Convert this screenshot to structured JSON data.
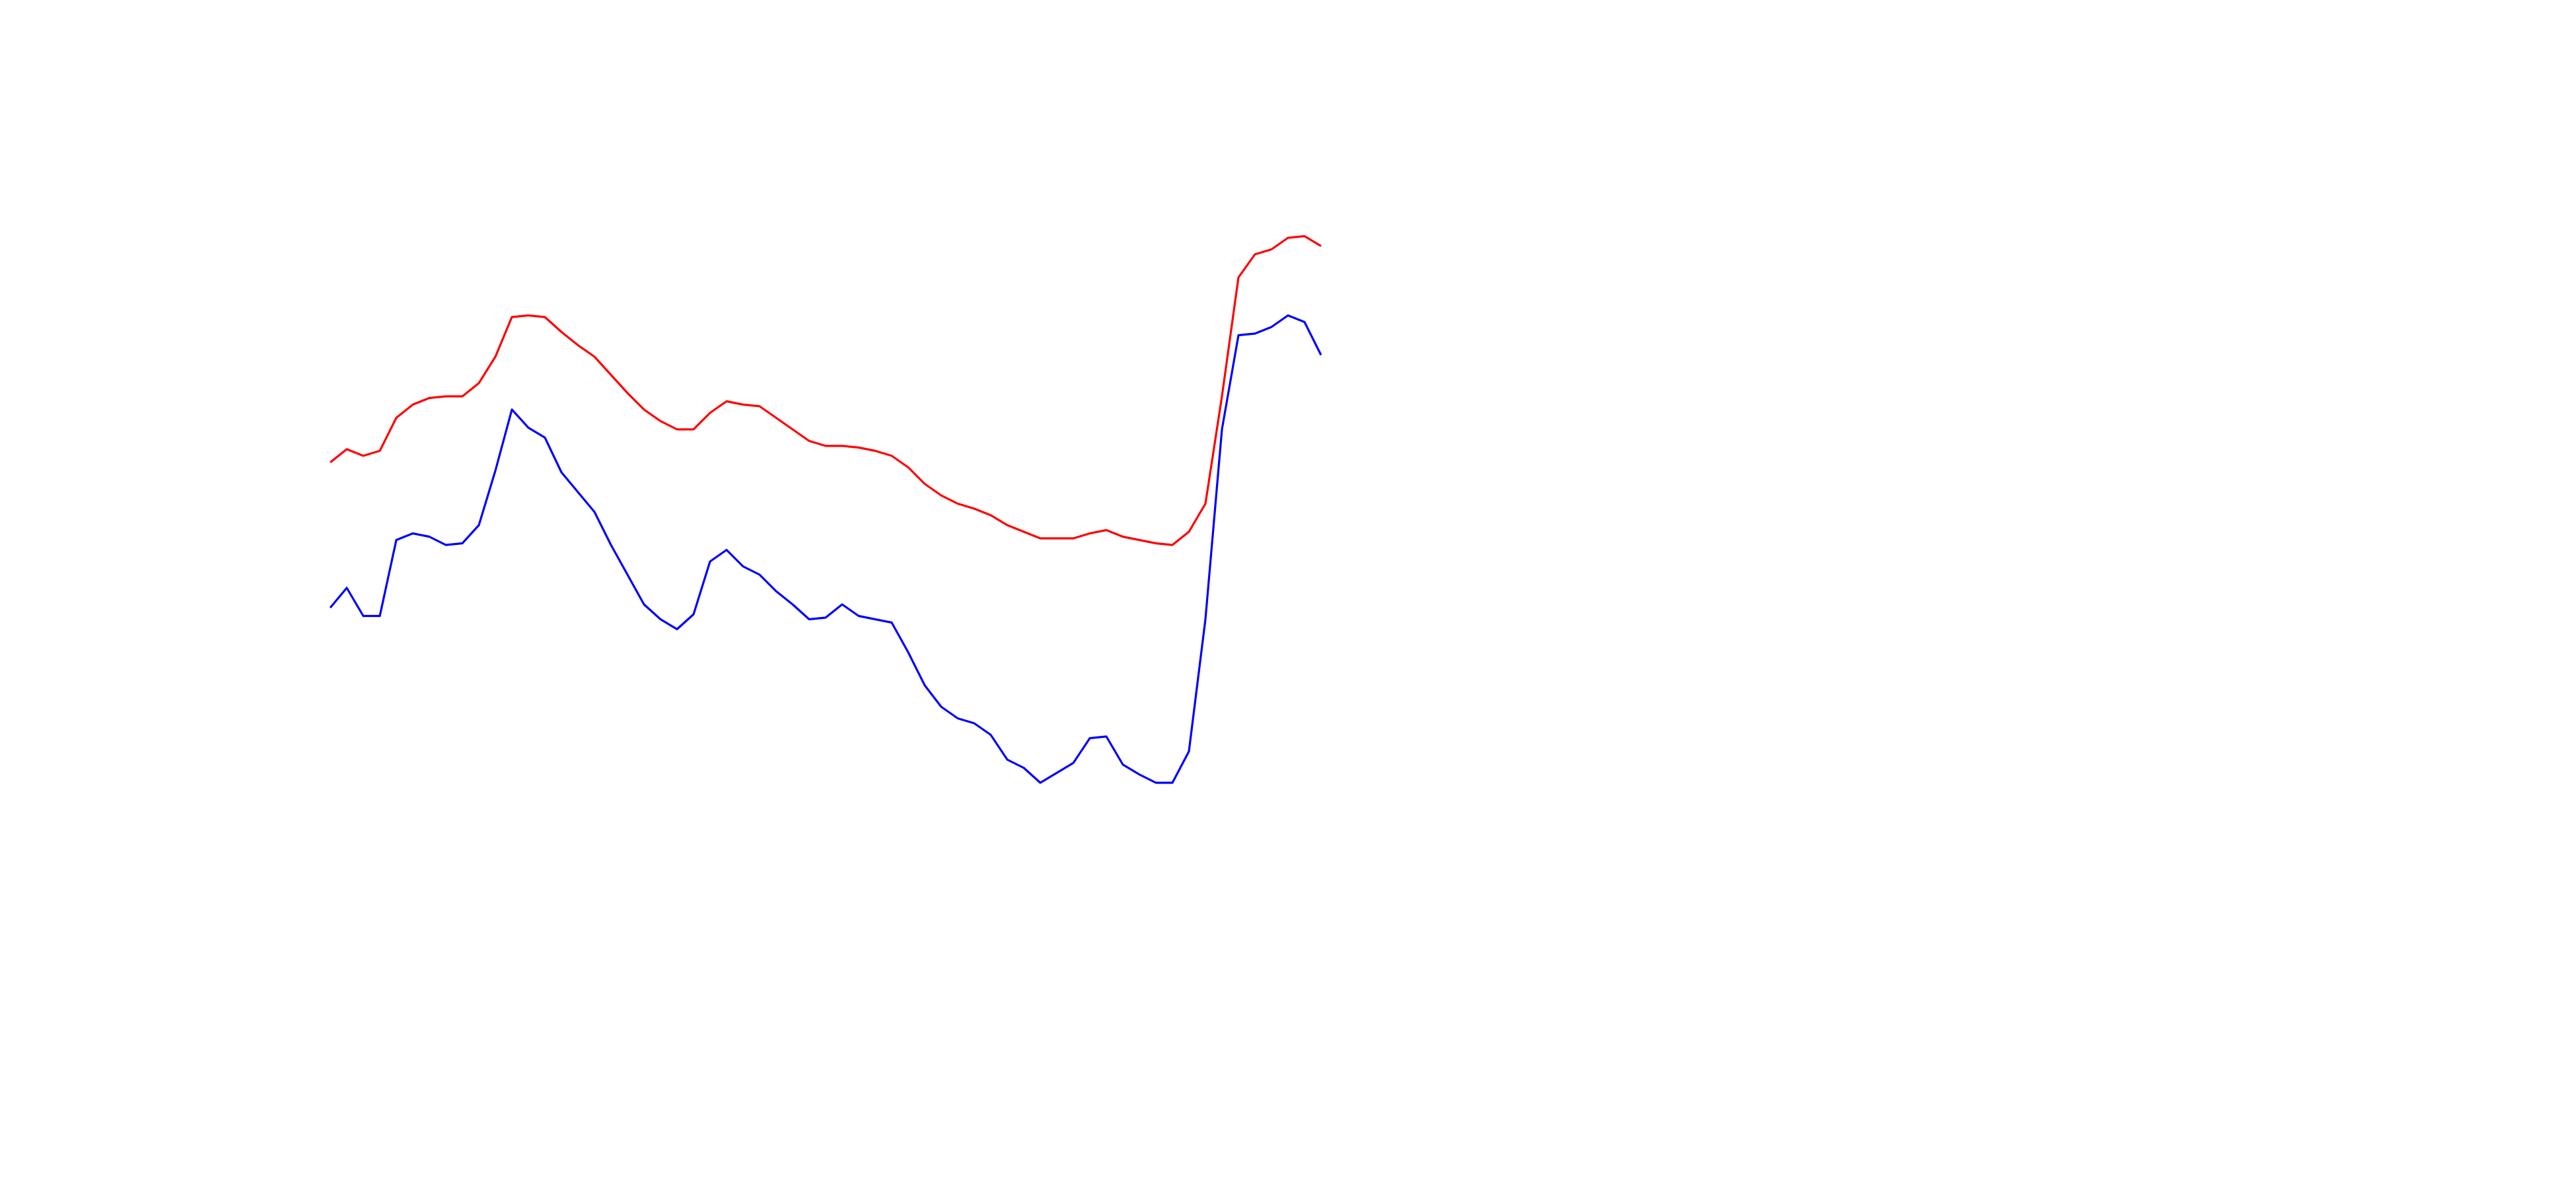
{
  "chart_data": {
    "type": "line",
    "x": [
      0,
      10,
      20,
      30,
      40,
      50,
      60,
      70,
      80,
      90,
      100,
      110,
      120,
      130,
      140,
      150,
      160,
      170,
      180,
      190,
      200,
      210,
      220,
      230,
      240,
      250,
      260,
      270,
      280,
      290,
      300,
      310,
      320,
      330,
      340,
      350,
      360,
      370,
      380,
      390,
      400,
      410,
      420,
      430,
      440,
      450,
      460,
      470,
      480,
      490,
      500,
      510,
      520,
      530,
      540,
      550,
      560,
      570,
      580,
      590,
      600
    ],
    "xlim": [
      -3,
      602
    ],
    "ylim": [
      0,
      400
    ],
    "series": [
      {
        "color": "#ff0000",
        "values": [
          220,
          228,
          224,
          227,
          247,
          255,
          259,
          260,
          260,
          268,
          284,
          308,
          309,
          308,
          299,
          291,
          284,
          273,
          262,
          252,
          245,
          240,
          240,
          250,
          257,
          255,
          254,
          247,
          240,
          233,
          230,
          230,
          229,
          227,
          224,
          217,
          207,
          200,
          195,
          192,
          188,
          182,
          178,
          174,
          174,
          174,
          177,
          179,
          175,
          173,
          171,
          170,
          178,
          195,
          260,
          332,
          346,
          349,
          356,
          357,
          351
        ]
      },
      {
        "color": "#0000ff",
        "values": [
          132,
          144,
          127,
          127,
          173,
          177,
          175,
          170,
          171,
          182,
          215,
          252,
          241,
          235,
          214,
          202,
          190,
          170,
          152,
          134,
          125,
          119,
          128,
          160,
          167,
          157,
          152,
          142,
          134,
          125,
          126,
          134,
          127,
          125,
          123,
          105,
          85,
          72,
          65,
          62,
          55,
          40,
          35,
          26,
          32,
          38,
          53,
          54,
          37,
          31,
          26,
          26,
          45,
          125,
          240,
          297,
          298,
          302,
          309,
          305,
          285
        ]
      }
    ]
  }
}
